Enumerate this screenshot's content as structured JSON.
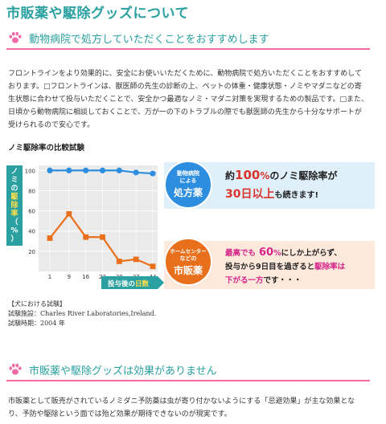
{
  "page": {
    "title": "市販薬や駆除グッズについて"
  },
  "section1": {
    "heading": "動物病院で処方していただくことをおすすめします",
    "body": "フロントラインをより効果的に、安全にお使いいただくために、動物病院で処方いただくことをおすすめしております。□フロントラインは、獣医師の先生の診断の上、ペットの体重・健康状態・ノミやマダニなどの寄生状態に合わせて投与いただくことで、安全かつ最適なノミ・マダニ対策を実現するための製品です。□また、日頃から動物病院に相談しておくことで、万が一の下のトラブルの際でも獣医師の先生から十分なサポートが受けられるので安心です。"
  },
  "chart_section": {
    "title": "ノミ駆除率の比較試験",
    "callout_top": {
      "badge_line1": "動物病院",
      "badge_line2": "による",
      "badge_main": "処方薬",
      "text_pre": "約",
      "text_num": "100",
      "text_pct": "%",
      "text_after": "のノミ駆除率が",
      "text_line2_em": "30日以上",
      "text_line2_after": "も続きます!"
    },
    "callout_bottom": {
      "badge_line1": "ホームセンター",
      "badge_line2": "などの",
      "badge_main": "市販薬",
      "l1_a": "最高でも",
      "l1_num": "60",
      "l1_pct": "%",
      "l1_b": "にしか上がらず、",
      "l2_a": "投与から9日目を過ぎると",
      "l2_em": "駆除率は",
      "l3_em": "下がる一方",
      "l3_b": "です・・・"
    },
    "notes": [
      "【犬における試験】",
      "試験施設：Charles River Laboratories,Ireland.",
      "試験時期：2004 年"
    ]
  },
  "chart_data": {
    "type": "line",
    "ylabel": "ノミの駆除率（%）",
    "ylabel_parts": [
      "ノ",
      "ミ",
      "の",
      "駆",
      "除",
      "率",
      "（",
      "%",
      "）"
    ],
    "xlabel_pre": "投与後の",
    "xlabel_em": "日数",
    "x": [
      1,
      9,
      16,
      23,
      30,
      37,
      44
    ],
    "xticks": [
      "1",
      "9",
      "16",
      "23",
      "30",
      "37",
      "44"
    ],
    "yticks": [
      "20",
      "40",
      "60",
      "80",
      "100"
    ],
    "ylim": [
      0,
      105
    ],
    "series": [
      {
        "values": [
          100,
          100,
          100,
          100,
          100,
          98,
          97
        ],
        "color": "#2d8ee0"
      },
      {
        "values": [
          33,
          57,
          34,
          34,
          10,
          12,
          5
        ],
        "color": "#e8701c"
      }
    ],
    "grid": true
  },
  "section2": {
    "heading": "市販薬や駆除グッズは効果がありません",
    "body": "市販薬として販売がされているノミダニ予防薬は虫が寄り付かないようにする「忌避効果」が主な効果となり、予防や駆除という面では殆ど効果が期待できないのが現実です。"
  },
  "colors": {
    "teal": "#2aa0a0",
    "pink": "#f06aa8",
    "blue": "#2d8ee0",
    "orange": "#e8701c",
    "red": "#d9342b",
    "magenta": "#d6248a"
  }
}
